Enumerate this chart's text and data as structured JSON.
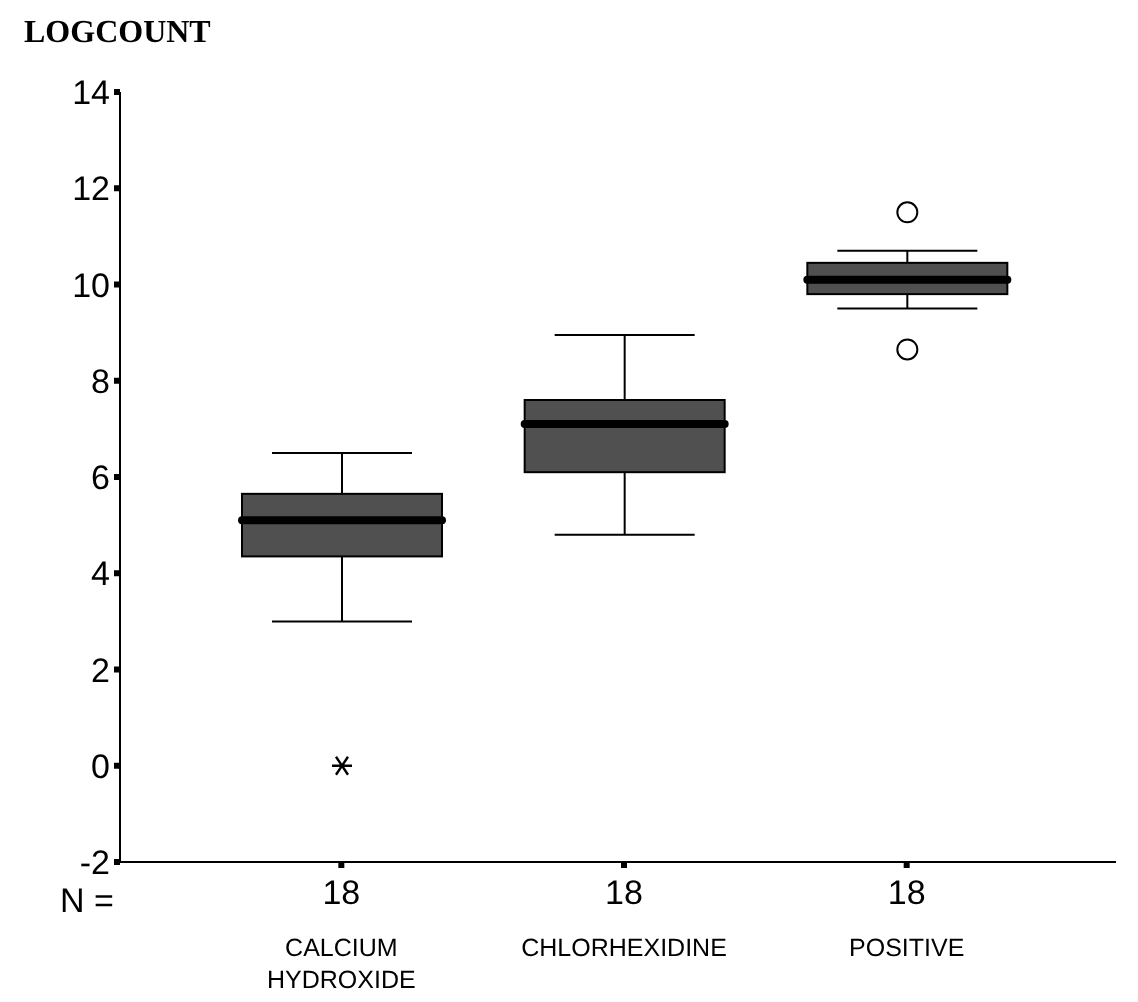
{
  "chart_data": {
    "type": "box",
    "ylabel": "LOGCOUNT",
    "categories": [
      "CALCIUM HYDROXIDE",
      "CHLORHEXIDINE",
      "POSITIVE"
    ],
    "color": "#505050",
    "boxes": [
      {
        "low": 3.0,
        "q1": 4.35,
        "median": 5.1,
        "q3": 5.65,
        "high": 6.5,
        "outliers": [
          0
        ]
      },
      {
        "low": 4.8,
        "q1": 6.1,
        "median": 7.1,
        "q3": 7.6,
        "high": 8.95
      },
      {
        "low": 9.5,
        "q1": 9.8,
        "median": 10.1,
        "q3": 10.45,
        "high": 10.7,
        "outliers": [
          11.5,
          8.65
        ]
      }
    ],
    "ylim": [
      -2,
      14
    ],
    "yticks": [
      -2,
      0,
      2,
      4,
      6,
      8,
      10,
      12,
      14
    ],
    "annotations": [
      "N =",
      "18",
      "18",
      "18"
    ]
  }
}
